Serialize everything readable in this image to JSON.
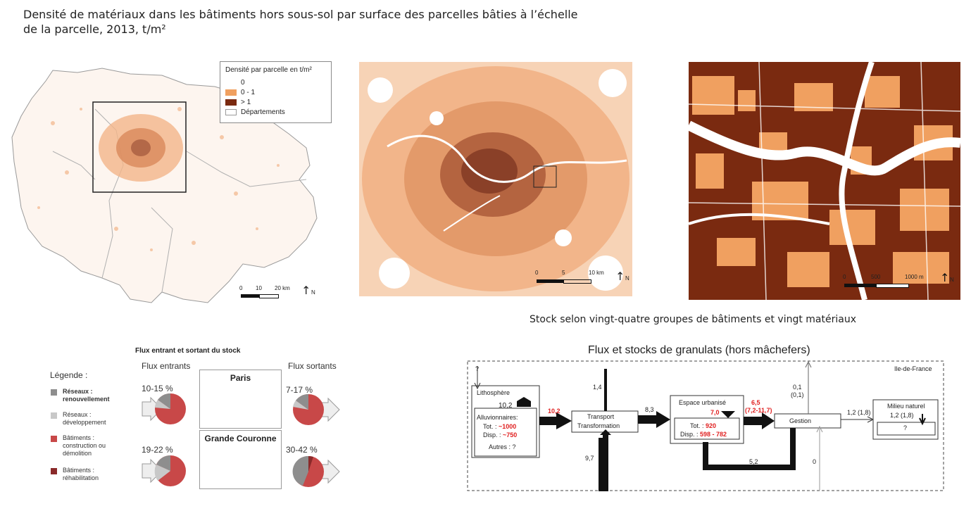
{
  "title": {
    "line1": "Densité de matériaux dans les bâtiments hors sous-sol par surface des parcelles bâties à l’échelle",
    "line2": "de la parcelle, 2013, t/m²"
  },
  "colors": {
    "zero": "#ffffff",
    "low": "#f0a060",
    "high": "#7a2a10",
    "departement": "#9a9a9a",
    "bat_construction": "#c84848",
    "bat_rehab": "#8a2a2a",
    "reseau_renouv": "#8e8e8e",
    "reseau_dev": "#c8c8c8"
  },
  "map_legend": {
    "title": "Densité par parcelle en t/m²",
    "items": [
      "0",
      "0 - 1",
      "> 1",
      "Départements"
    ]
  },
  "scale1": {
    "ticks": [
      "0",
      "10",
      "20 km"
    ],
    "north": "N"
  },
  "scale2": {
    "ticks": [
      "0",
      "5",
      "10 km"
    ],
    "north": "N"
  },
  "scale3": {
    "ticks": [
      "0",
      "500",
      "1000 m"
    ],
    "north": "N"
  },
  "caption_stock": "Stock selon vingt-quatre groupes de bâtiments  et vingt matériaux",
  "flux": {
    "title": "Flux entrant et sortant du stock",
    "legend_title": "Légende :",
    "legend": [
      {
        "line1": "Réseaux :",
        "line2": "renouvellement",
        "bold": true
      },
      {
        "line1": "Réseaux :",
        "line2": "développement",
        "bold": false
      },
      {
        "line1": "Bâtiments :",
        "line2": "construction ou",
        "line3": "démolition",
        "bold": false
      },
      {
        "line1": "Bâtiments :",
        "line2": "réhabilitation",
        "bold": false
      }
    ],
    "in_header": "Flux entrants",
    "out_header": "Flux sortants",
    "paris": {
      "label": "Paris",
      "in_pct": "10-15 %",
      "out_pct": "7-17 %"
    },
    "gc": {
      "label": "Grande Couronne",
      "in_pct": "19-22 %",
      "out_pct": "30-42 %"
    }
  },
  "granulats": {
    "title": "Flux et stocks de granulats (hors mâchefers)",
    "region": "Ile-de-France",
    "q_top": "?",
    "litho": "Lithosphère",
    "litho_val": "10,2",
    "alluv": "Alluvionnaires:",
    "tot_label": "Tot. :",
    "tot_val": "~1000",
    "disp_label": "Disp. :",
    "disp_val": "~750",
    "autres": "Autres : ?",
    "f_102": "10,2",
    "f_14": "1,4",
    "transport1": "Transport",
    "transport2": "Transformation",
    "f_83": "8,3",
    "f_97": "9,7",
    "espace": "Espace urbanisé",
    "esp_val": "7,0",
    "esp_tot_label": "Tot. :",
    "esp_tot_val": "920",
    "esp_disp_label": "Disp. :",
    "esp_disp_val": "598 - 782",
    "f_65": "6,5",
    "f_65b": "(7,2-11,7)",
    "gestion": "Gestion",
    "f_01": "0,1",
    "f_01b": "(0,1)",
    "f_52": "5,2",
    "f_0": "0",
    "f_12": "1,2 (1,8)",
    "milieu": "Milieu naturel",
    "milieu_val": "1,2 (1,8)",
    "milieu_q": "?"
  }
}
